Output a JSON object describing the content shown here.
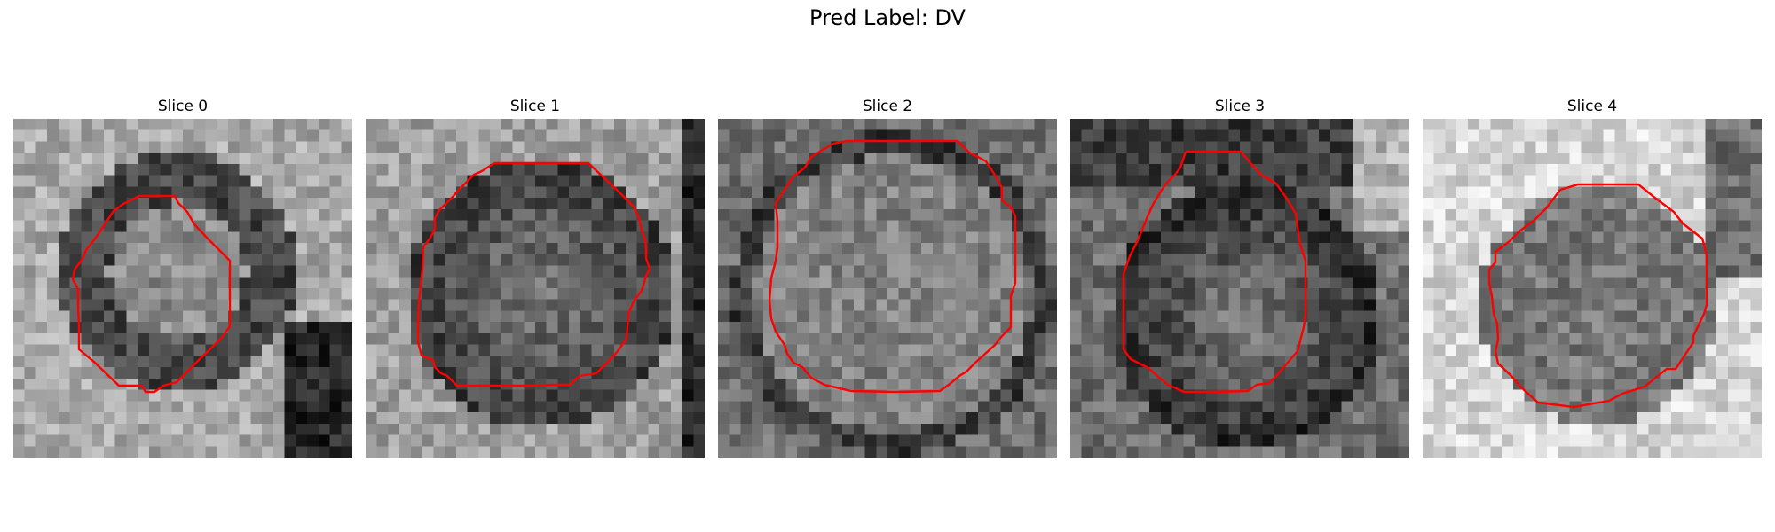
{
  "figure": {
    "title": "Pred Label: DV",
    "contour_color": "#ff0000",
    "colormap": "gray",
    "panels": [
      {
        "title": "Slice 0",
        "image": "grayscale-tumor-patch-slice-0",
        "contour": "red-segmentation-outline"
      },
      {
        "title": "Slice 1",
        "image": "grayscale-tumor-patch-slice-1",
        "contour": "red-segmentation-outline"
      },
      {
        "title": "Slice 2",
        "image": "grayscale-tumor-patch-slice-2",
        "contour": "red-segmentation-outline"
      },
      {
        "title": "Slice 3",
        "image": "grayscale-tumor-patch-slice-3",
        "contour": "red-segmentation-outline"
      },
      {
        "title": "Slice 4",
        "image": "grayscale-tumor-patch-slice-4",
        "contour": "red-segmentation-outline"
      }
    ]
  }
}
